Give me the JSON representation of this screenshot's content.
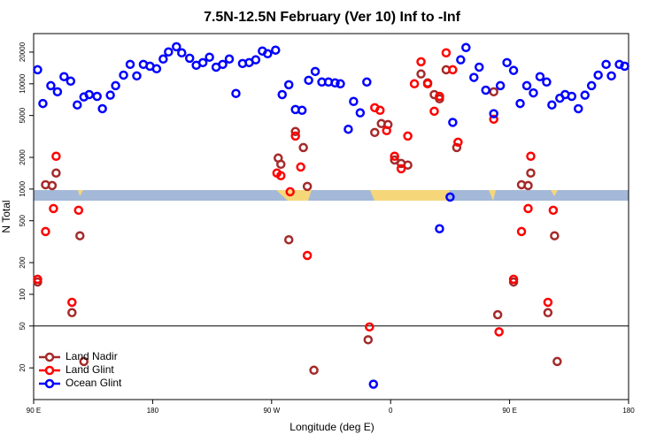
{
  "chart_data": {
    "type": "scatter",
    "title": "7.5N-12.5N February (Ver 10)   Inf to -Inf",
    "x_label": "Longitude (deg E)",
    "y_label": "N Total",
    "log_y": true,
    "legend": "bottom-left",
    "hline": 50,
    "xlim": [
      90,
      540
    ],
    "ylim": [
      10,
      30000
    ],
    "xticks": [
      {
        "value": 90,
        "label": "90 E"
      },
      180,
      {
        "value": 270,
        "label": "90 W"
      },
      {
        "value": 360,
        "label": "0"
      },
      {
        "value": 450,
        "label": "90 E"
      },
      {
        "value": 540,
        "label": "180"
      }
    ],
    "yticks": [
      20,
      50,
      100,
      200,
      500,
      1000,
      2000,
      5000,
      10000,
      20000
    ],
    "series": [
      {
        "name": "Land Nadir",
        "color": "#a52a2a",
        "x": [
          93,
          99,
          104,
          107,
          119,
          125,
          128,
          275,
          277,
          283,
          288,
          294,
          297,
          302,
          343,
          348,
          353,
          358,
          363,
          368,
          373,
          383,
          388,
          393,
          397,
          402,
          410,
          438,
          441,
          453,
          459,
          464,
          466,
          479,
          484,
          486
        ],
        "values": [
          131,
          1100,
          1080,
          1420,
          67,
          360,
          23,
          1970,
          1720,
          330,
          3520,
          2480,
          1060,
          19,
          37,
          3450,
          4190,
          4100,
          1890,
          1750,
          1690,
          12400,
          10200,
          7900,
          7200,
          13600,
          2480,
          8400,
          64,
          131,
          1100,
          1080,
          1420,
          67,
          360,
          23
        ]
      },
      {
        "name": "Land Glint",
        "color": "#ff0000",
        "x": [
          93,
          99,
          105,
          107,
          119,
          124,
          274,
          277,
          284,
          288,
          292,
          297,
          344,
          348,
          352,
          357,
          363,
          368,
          373,
          378,
          383,
          388,
          393,
          397,
          402,
          407,
          411,
          438,
          442,
          453,
          459,
          464,
          466,
          479,
          483
        ],
        "values": [
          139,
          395,
          653,
          2050,
          84,
          629,
          1420,
          1340,
          943,
          3190,
          1620,
          234,
          49,
          5930,
          5600,
          3590,
          2050,
          1560,
          3190,
          10000,
          16200,
          10000,
          5490,
          7600,
          19700,
          13600,
          2790,
          4610,
          44,
          139,
          395,
          653,
          2050,
          84,
          629
        ]
      },
      {
        "name": "Ocean Glint",
        "color": "#0000ff",
        "x": [
          93,
          97,
          103,
          108,
          113,
          118,
          123,
          128,
          132,
          138,
          142,
          148,
          152,
          158,
          163,
          168,
          173,
          178,
          183,
          188,
          192,
          198,
          202,
          208,
          213,
          218,
          223,
          228,
          233,
          238,
          243,
          248,
          253,
          258,
          263,
          267,
          273,
          278,
          283,
          288,
          293,
          298,
          303,
          308,
          313,
          318,
          322,
          328,
          332,
          337,
          342,
          347,
          397,
          405,
          407,
          413,
          417,
          423,
          427,
          432,
          438,
          443,
          448,
          453,
          458,
          463,
          468,
          473,
          478,
          482,
          488,
          492,
          497,
          502,
          507,
          512,
          517,
          523,
          527,
          533,
          537
        ],
        "values": [
          13600,
          6500,
          9600,
          8400,
          11700,
          10600,
          6300,
          7500,
          7900,
          7600,
          5800,
          7800,
          9600,
          12100,
          15300,
          11900,
          15300,
          14700,
          13900,
          17200,
          20100,
          22500,
          19700,
          17500,
          15000,
          15900,
          17900,
          14400,
          15300,
          17200,
          8100,
          15600,
          15900,
          16900,
          20500,
          19300,
          20900,
          7900,
          9800,
          5700,
          5600,
          10800,
          13100,
          10400,
          10400,
          10200,
          10000,
          3700,
          6800,
          5300,
          10400,
          14,
          420,
          840,
          4300,
          16900,
          22100,
          11500,
          14400,
          8700,
          5200,
          9600,
          15900,
          13400,
          6500,
          9600,
          8200,
          11700,
          10400,
          6300,
          7300,
          7900,
          7600,
          5800,
          7800,
          9600,
          12100,
          15300,
          11900,
          15300,
          14700
        ]
      }
    ]
  }
}
